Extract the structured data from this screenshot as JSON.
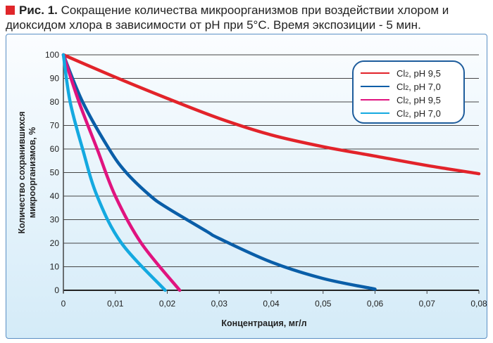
{
  "caption": {
    "label": "Рис. 1.",
    "text": "Сокращение количества микроорганизмов при воздействии хлором и диоксидом хлора в зависимости от pH при 5°C. Время экспозиции - 5 мин."
  },
  "chart_data": {
    "type": "line",
    "title": "Рис. 1. Сокращение количества микроорганизмов при воздействии хлором и диоксидом хлора в зависимости от pH при 5°C. Время экспозиции - 5 мин.",
    "xlabel": "Концентрация, мг/л",
    "ylabel_lines": [
      "Количество сохранившихся",
      "микроорганизмов, %"
    ],
    "xlim": [
      0,
      0.08
    ],
    "ylim": [
      0,
      100
    ],
    "xticks": [
      "0",
      "0,01",
      "0,02",
      "0,03",
      "0,04",
      "0,05",
      "0,06",
      "0,07",
      "0,08"
    ],
    "yticks": [
      "0",
      "10",
      "20",
      "30",
      "40",
      "50",
      "60",
      "70",
      "80",
      "90",
      "100"
    ],
    "grid": "horizontal",
    "legend_position": "top-right",
    "series": [
      {
        "name": "Cl2, pH 9,5",
        "legend_base": "Cl",
        "legend_sub": "2",
        "legend_rest": ", pH 9,5",
        "color": "#e2232a",
        "x": [
          0,
          0.01,
          0.02,
          0.03,
          0.04,
          0.05,
          0.06,
          0.07,
          0.08
        ],
        "y": [
          100,
          90.5,
          81.5,
          73,
          66,
          61,
          57,
          53,
          49.5
        ]
      },
      {
        "name": "Cl2, pH 7,0",
        "legend_base": "Cl",
        "legend_sub": "2",
        "legend_rest": ", pH 7,0",
        "color": "#0a5ea8",
        "x": [
          0,
          0.0037,
          0.0088,
          0.0121,
          0.0168,
          0.02,
          0.0276,
          0.03,
          0.04,
          0.05,
          0.06
        ],
        "y": [
          100,
          80,
          60,
          50,
          40,
          35,
          25,
          22,
          12,
          5,
          0.5
        ]
      },
      {
        "name": "Cl2, pH 9,5",
        "legend_base": "Cl",
        "legend_sub": "2",
        "legend_rest": ", pH 9,5",
        "color": "#e0137f",
        "x": [
          0,
          0.003,
          0.0065,
          0.01,
          0.015,
          0.0224
        ],
        "y": [
          100,
          80,
          60,
          40,
          20,
          0
        ]
      },
      {
        "name": "Cl2, pH 7,0",
        "legend_base": "Cl",
        "legend_sub": "2",
        "legend_rest": ", pH 7,0",
        "color": "#14a9e0",
        "x": [
          0,
          0.0013,
          0.0037,
          0.0065,
          0.0112,
          0.0196
        ],
        "y": [
          100,
          80,
          60,
          40,
          20,
          0
        ]
      }
    ]
  }
}
